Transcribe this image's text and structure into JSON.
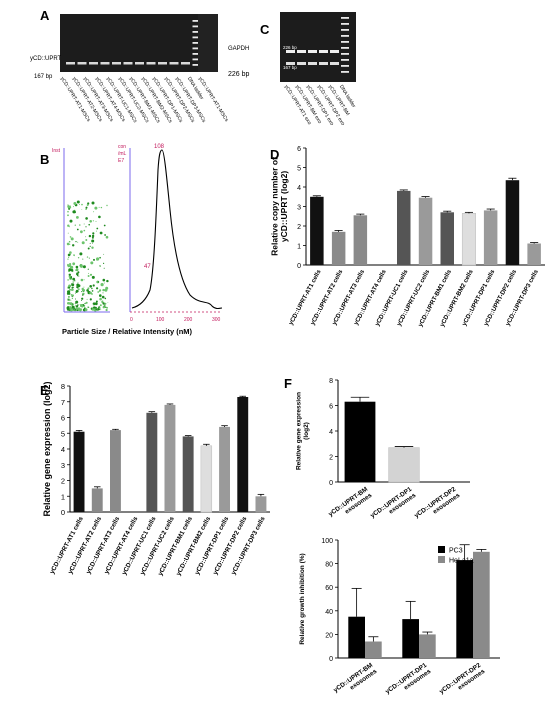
{
  "panels": {
    "A": "A",
    "B": "B",
    "C": "C",
    "D": "D",
    "E": "E",
    "F": "F"
  },
  "gel_a": {
    "left_label": "yCD::UPRT",
    "bp_label": "167 bp",
    "gapdh_label": "GAPDH",
    "gapdh_bp": "226 bp",
    "lanes": [
      "yCD::UPRT-AT1-MSCs",
      "yCD::UPRT-AT2-MSCs",
      "yCD::UPRT-AT3-MSCs",
      "yCD::UPRT-AT4-MSCs",
      "yCD::UPRT-UC1-MSCs",
      "yCD::UPRT-UC2-MSCs",
      "yCD::UPRT-BM1-MSCs",
      "yCD::UPRT-BM2-MSCs",
      "yCD::UPRT-DP1-MSCs",
      "yCD::UPRT-DP2-MSCs",
      "yCD::UPRT-DP3-MSCs",
      "DNA ladder",
      "yCD::UPRT-AT1-MSCs"
    ]
  },
  "gel_c": {
    "label_226": "226 bp",
    "label_167": "167 bp",
    "lanes": [
      "yCD::UPRT-AT1 exo",
      "yCD::UPRT-BM exo",
      "yCD::UPRT-DP1 exo",
      "yCD::UPRT-DP2 exo",
      "yCD::UPRT-BM",
      "DNA ladder"
    ]
  },
  "nta": {
    "y_unit_left": "Inst",
    "y_unit_right_1": "con",
    "y_unit_right_2": "/mL",
    "y_unit_right_3": "E7",
    "peak_label": "108",
    "secondary_label": "47",
    "xlabel": "Particle Size / Relative Intensity (nM)",
    "x_ticks": [
      "0",
      "100",
      "200",
      "300"
    ]
  },
  "chart_data": [
    {
      "panel": "D",
      "type": "bar",
      "ylabel": "Relative copy number of yCD::UPRT (log2)",
      "ylim": [
        0,
        6
      ],
      "yticks": [
        0,
        1,
        2,
        3,
        4,
        5,
        6
      ],
      "categories": [
        "yCD::UPRT-AT1 cells",
        "yCD::UPRT-AT2 cells",
        "yCD::UPRT-AT3 cells",
        "yCD::UPRT-AT4 cells",
        "yCD::UPRT-UC1 cells",
        "yCD::UPRT-UC2 cells",
        "yCD::UPRT-BM1 cells",
        "yCD::UPRT-BM2 cells",
        "yCD::UPRT-DP1 cells",
        "yCD::UPRT-DP2 cells",
        "yCD::UPRT-DP3 cells"
      ],
      "values": [
        3.5,
        1.7,
        2.55,
        0,
        3.8,
        3.45,
        2.7,
        2.65,
        2.8,
        4.35,
        1.1
      ],
      "errors": [
        0.05,
        0.07,
        0.06,
        0,
        0.05,
        0.06,
        0.06,
        0.05,
        0.07,
        0.1,
        0.05
      ],
      "colors": [
        "#111111",
        "#8a8a8a",
        "#8a8a8a",
        "#ffffff",
        "#555555",
        "#9a9a9a",
        "#555555",
        "#dedede",
        "#9a9a9a",
        "#111111",
        "#9a9a9a"
      ]
    },
    {
      "panel": "E",
      "type": "bar",
      "ylabel": "Relative gene expression (log2)",
      "ylim": [
        0,
        8
      ],
      "yticks": [
        0,
        1,
        2,
        3,
        4,
        5,
        6,
        7,
        8
      ],
      "categories": [
        "yCD::UPRT-AT1 cells",
        "yCD::UPRT-AT2 cells",
        "yCD::UPRT-AT3 cells",
        "yCD::UPRT-AT4 cells",
        "yCD::UPRT-UC1 cells",
        "yCD::UPRT-UC2 cells",
        "yCD::UPRT-BM1 cells",
        "yCD::UPRT-BM2 cells",
        "yCD::UPRT-DP1 cells",
        "yCD::UPRT-DP2 cells",
        "yCD::UPRT-DP3 cells"
      ],
      "values": [
        5.1,
        1.5,
        5.2,
        0,
        6.3,
        6.8,
        4.8,
        4.2,
        5.4,
        7.3,
        1.0
      ],
      "errors": [
        0.08,
        0.1,
        0.05,
        0,
        0.07,
        0.06,
        0.05,
        0.1,
        0.08,
        0.05,
        0.12
      ],
      "colors": [
        "#111111",
        "#8a8a8a",
        "#8a8a8a",
        "#ffffff",
        "#555555",
        "#9a9a9a",
        "#555555",
        "#dedede",
        "#9a9a9a",
        "#111111",
        "#9a9a9a"
      ]
    },
    {
      "panel": "F-top",
      "type": "bar",
      "ylabel": "Relative gene expression (log2)",
      "ylim": [
        0,
        8
      ],
      "yticks": [
        0,
        2,
        4,
        6,
        8
      ],
      "categories": [
        "yCD::UPRT-BM exosomes",
        "yCD::UPRT-DP1 exosomes",
        "yCD::UPRT-DP2 exosomes"
      ],
      "values": [
        6.3,
        2.7,
        0
      ],
      "errors": [
        0.35,
        0.08,
        0
      ],
      "colors": [
        "#000000",
        "#d3d3d3",
        "#ffffff"
      ]
    },
    {
      "panel": "F-bottom",
      "type": "bar",
      "ylabel": "Relative growth inhibition (%)",
      "ylim": [
        0,
        100
      ],
      "yticks": [
        0,
        20,
        40,
        60,
        80,
        100
      ],
      "categories": [
        "yCD::UPRT-BM exosomes",
        "yCD::UPRT-DP1 exosomes",
        "yCD::UPRT-DP2 exosomes"
      ],
      "series": [
        {
          "name": "PC3",
          "values": [
            35,
            33,
            83
          ],
          "errors": [
            24,
            15,
            13
          ],
          "color": "#000000"
        },
        {
          "name": "HeLa1a",
          "values": [
            14,
            20,
            90
          ],
          "errors": [
            4,
            2,
            2
          ],
          "color": "#8a8a8a"
        }
      ],
      "legend": "top-right"
    }
  ]
}
